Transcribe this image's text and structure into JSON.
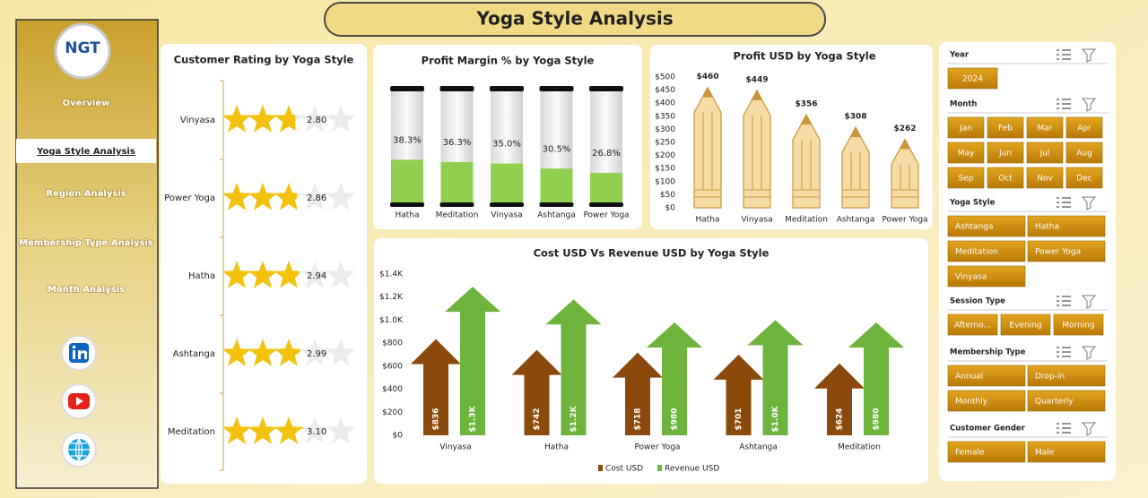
{
  "title": "Yoga Style Analysis",
  "sidebar": {
    "logo": "NGT",
    "nav": [
      "Overview",
      "Yoga Style Analysis",
      "Region Analysis",
      "Membership Type Analysis",
      "Month Analysis"
    ]
  },
  "chart_data": [
    {
      "type": "rating",
      "title": "Customer Rating by Yoga Style",
      "categories": [
        "Vinyasa",
        "Power Yoga",
        "Hatha",
        "Ashtanga",
        "Meditation"
      ],
      "values": [
        2.8,
        2.86,
        2.94,
        2.99,
        3.1
      ],
      "value_labels": [
        "2.80",
        "2.86",
        "2.94",
        "2.99",
        "3.10"
      ],
      "xlim": [
        0,
        5
      ],
      "color": "#f4c20d"
    },
    {
      "type": "cylinder",
      "title": "Profit Margin % by Yoga Style",
      "categories": [
        "Hatha",
        "Meditation",
        "Vinyasa",
        "Ashtanga",
        "Power Yoga"
      ],
      "values": [
        38.3,
        36.3,
        35.0,
        30.5,
        26.8
      ],
      "value_labels": [
        "38.3%",
        "36.3%",
        "35.0%",
        "30.5%",
        "26.8%"
      ],
      "ylim": [
        0,
        100
      ],
      "color": "#8fd14f"
    },
    {
      "type": "pencil",
      "title": "Profit USD by Yoga Style",
      "categories": [
        "Hatha",
        "Vinyasa",
        "Meditation",
        "Ashtanga",
        "Power Yoga"
      ],
      "values": [
        460,
        449,
        356,
        308,
        262
      ],
      "value_labels": [
        "$460",
        "$449",
        "$356",
        "$308",
        "$262"
      ],
      "ylim": [
        0,
        500
      ],
      "yticks": [
        {
          "value": 0,
          "label": "$0"
        },
        {
          "value": 50,
          "label": "$50"
        },
        {
          "value": 100,
          "label": "$100"
        },
        {
          "value": 150,
          "label": "$150"
        },
        {
          "value": 200,
          "label": "$200"
        },
        {
          "value": 250,
          "label": "$250"
        },
        {
          "value": 300,
          "label": "$300"
        },
        {
          "value": 350,
          "label": "$350"
        },
        {
          "value": 400,
          "label": "$400"
        },
        {
          "value": 450,
          "label": "$450"
        },
        {
          "value": 500,
          "label": "$500"
        }
      ],
      "color": "#f6dba4"
    },
    {
      "type": "arrow",
      "title": "Cost USD Vs Revenue USD by Yoga Style",
      "categories": [
        "Vinyasa",
        "Hatha",
        "Power Yoga",
        "Ashtanga",
        "Meditation"
      ],
      "series": [
        {
          "name": "Cost USD",
          "color": "#8b4a0b",
          "values": [
            836,
            742,
            718,
            701,
            624
          ],
          "value_labels": [
            "$836",
            "$742",
            "$718",
            "$701",
            "$624"
          ]
        },
        {
          "name": "Revenue USD",
          "color": "#6cb43c",
          "values": [
            1290,
            1180,
            980,
            1000,
            980
          ],
          "value_labels": [
            "$1.3K",
            "$1.2K",
            "$980",
            "$1.0K",
            "$980"
          ]
        }
      ],
      "ylim": [
        0,
        1400
      ],
      "yticks": [
        {
          "value": 0,
          "label": "$0"
        },
        {
          "value": 200,
          "label": "$200"
        },
        {
          "value": 400,
          "label": "$400"
        },
        {
          "value": 600,
          "label": "$600"
        },
        {
          "value": 800,
          "label": "$800"
        },
        {
          "value": 1000,
          "label": "$1.0K"
        },
        {
          "value": 1200,
          "label": "$1.2K"
        },
        {
          "value": 1400,
          "label": "$1.4K"
        }
      ]
    }
  ],
  "slicers": [
    {
      "title": "Year",
      "items": [
        "2024"
      ]
    },
    {
      "title": "Month",
      "items": [
        "Jan",
        "Feb",
        "Mar",
        "Apr",
        "May",
        "Jun",
        "Jul",
        "Aug",
        "Sep",
        "Oct",
        "Nov",
        "Dec"
      ]
    },
    {
      "title": "Yoga Style",
      "items": [
        "Ashtanga",
        "Hatha",
        "Meditation",
        "Power Yoga",
        "Vinyasa"
      ]
    },
    {
      "title": "Session Type",
      "items": [
        "Afterno...",
        "Evening",
        "Morning"
      ]
    },
    {
      "title": "Membership Type",
      "items": [
        "Annual",
        "Drop-in",
        "Monthly",
        "Quarterly"
      ]
    },
    {
      "title": "Customer Gender",
      "items": [
        "Female",
        "Male"
      ]
    }
  ]
}
